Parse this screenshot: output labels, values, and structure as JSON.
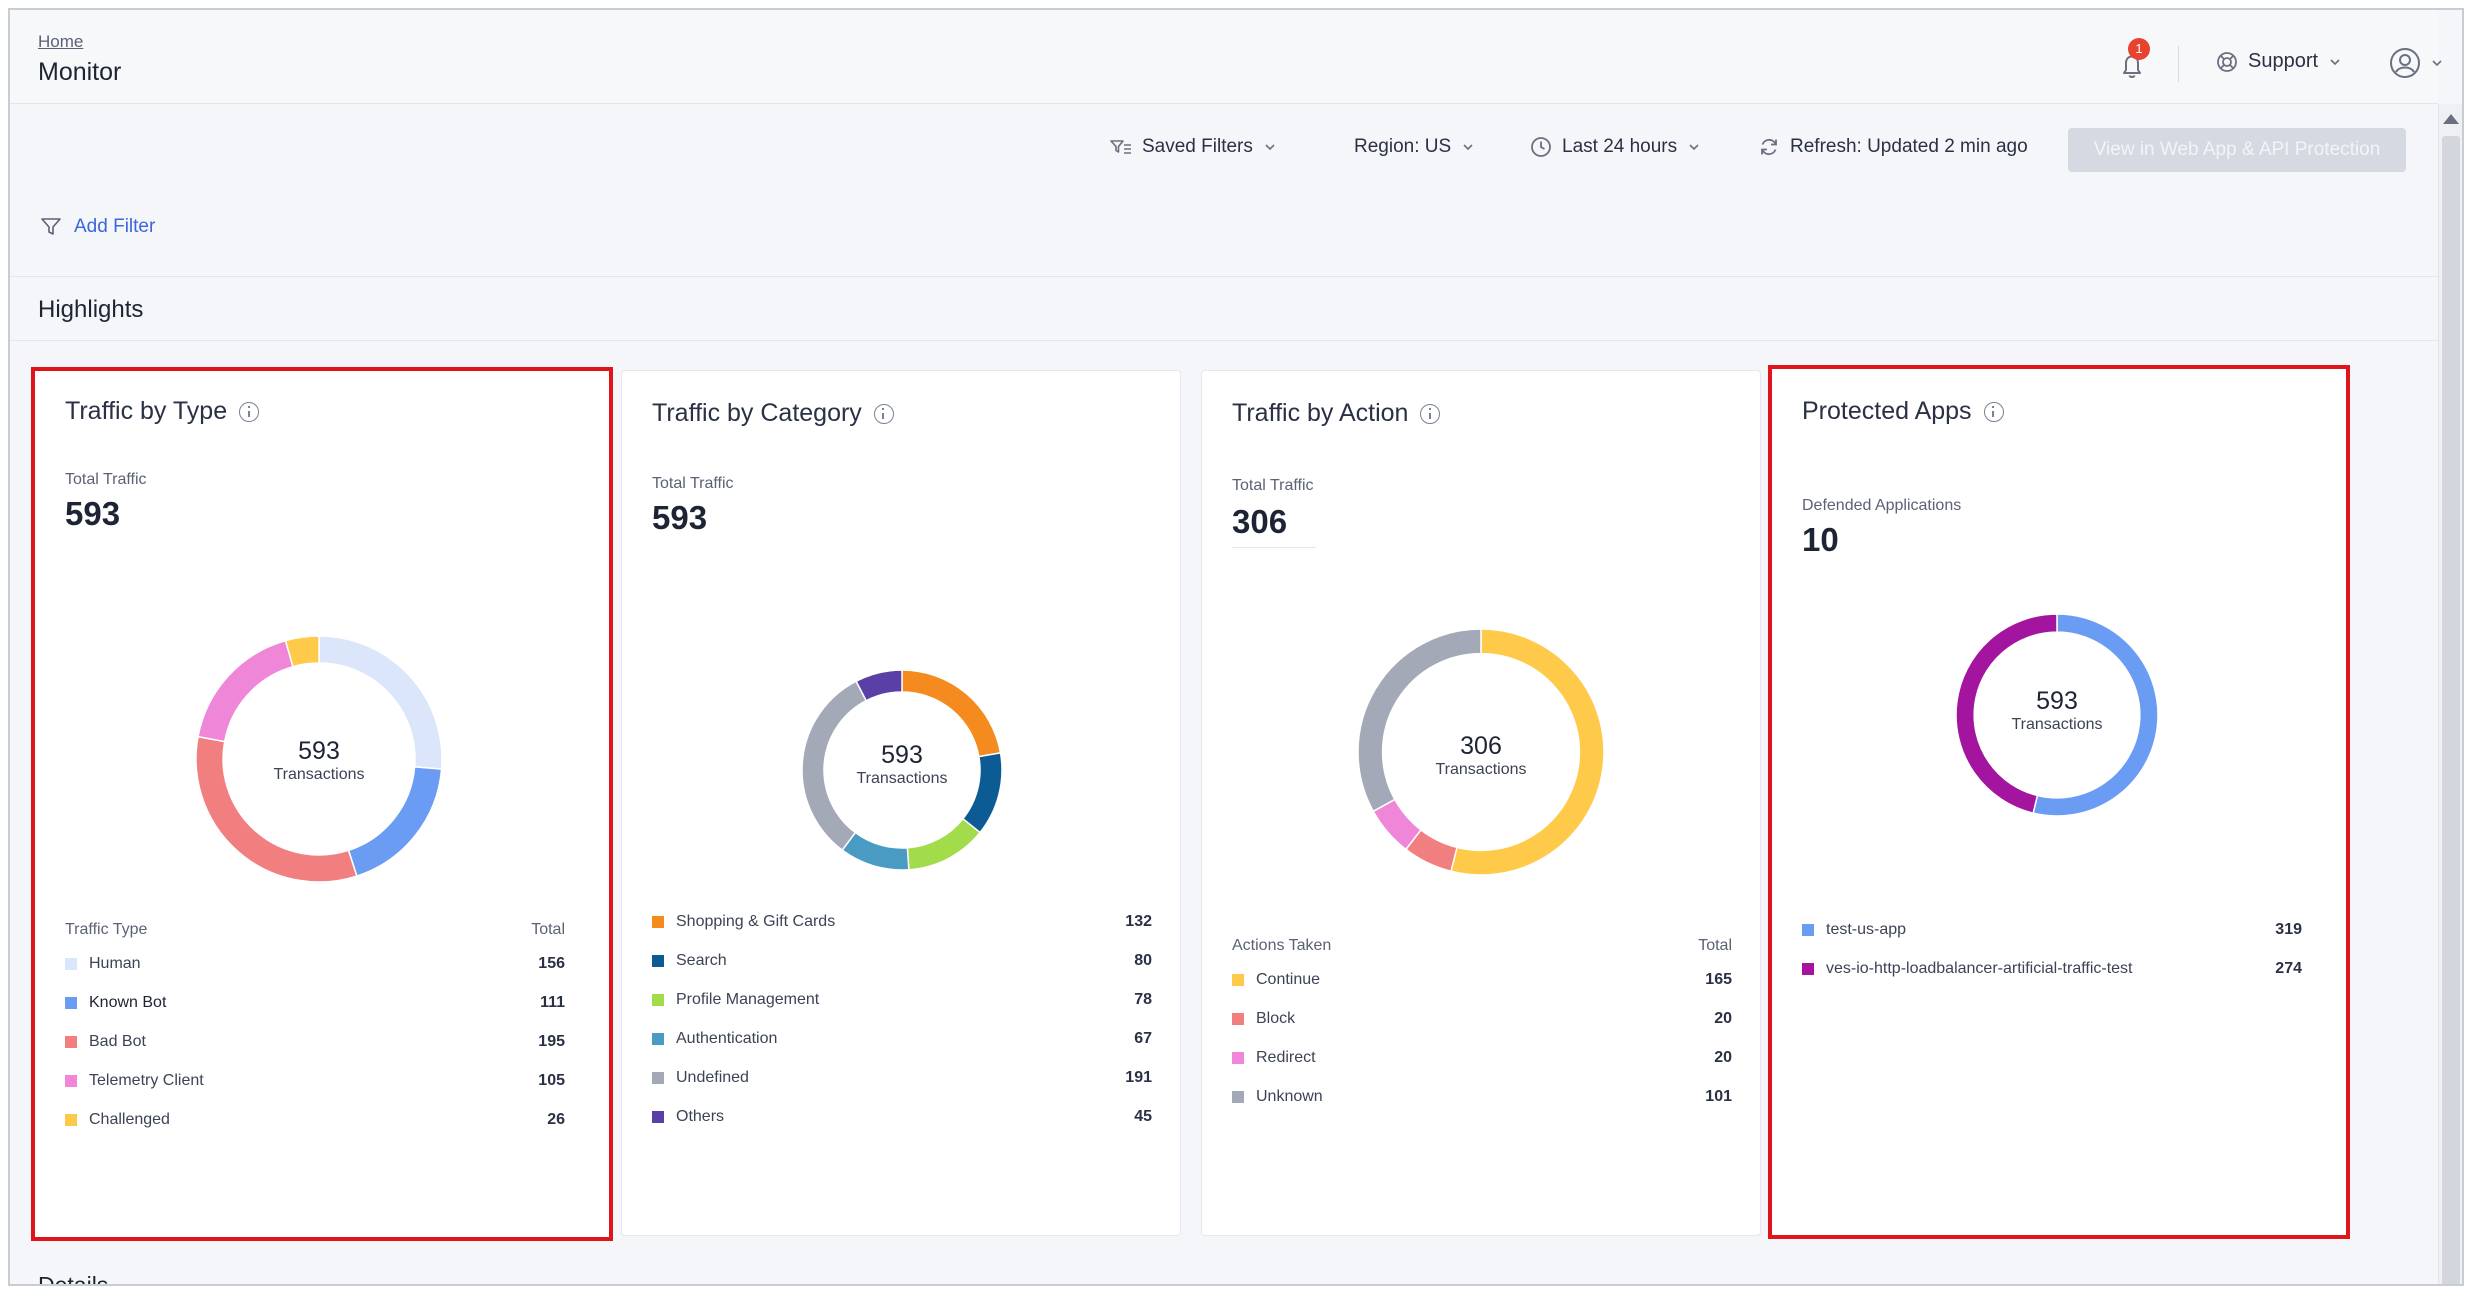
{
  "header": {
    "breadcrumb": "Home",
    "title": "Monitor",
    "notification_count": "1",
    "support_label": "Support"
  },
  "toolbar": {
    "saved_filters": "Saved Filters",
    "region": "Region: US",
    "time_range": "Last 24 hours",
    "refresh": "Refresh: Updated 2 min ago",
    "view_button": "View in Web App & API Protection",
    "add_filter": "Add Filter"
  },
  "sections": {
    "highlights": "Highlights",
    "details": "Details"
  },
  "cards": [
    {
      "title": "Traffic by Type",
      "metric_label": "Total Traffic",
      "metric_value": "593",
      "center_value": "593",
      "center_label": "Transactions",
      "legend_header": "Traffic Type",
      "legend_total": "Total",
      "highlighted": true,
      "items": [
        {
          "label": "Human",
          "value": 156,
          "color": "#dbe6fb"
        },
        {
          "label": "Known Bot",
          "value": 111,
          "color": "#6a9cf4"
        },
        {
          "label": "Bad Bot",
          "value": 195,
          "color": "#f17f7f"
        },
        {
          "label": "Telemetry Client",
          "value": 105,
          "color": "#ef86d8"
        },
        {
          "label": "Challenged",
          "value": 26,
          "color": "#ffc94a"
        }
      ]
    },
    {
      "title": "Traffic by Category",
      "metric_label": "Total Traffic",
      "metric_value": "593",
      "center_value": "593",
      "center_label": "Transactions",
      "highlighted": false,
      "items": [
        {
          "label": "Shopping & Gift Cards",
          "value": 132,
          "color": "#f58a1f"
        },
        {
          "label": "Search",
          "value": 80,
          "color": "#0c5b94"
        },
        {
          "label": "Profile Management",
          "value": 78,
          "color": "#a3dc4a"
        },
        {
          "label": "Authentication",
          "value": 67,
          "color": "#4a9bc4"
        },
        {
          "label": "Undefined",
          "value": 191,
          "color": "#a3a9b6"
        },
        {
          "label": "Others",
          "value": 45,
          "color": "#5a3fa6"
        }
      ]
    },
    {
      "title": "Traffic by Action",
      "metric_label": "Total Traffic",
      "metric_value": "306",
      "center_value": "306",
      "center_label": "Transactions",
      "legend_header": "Actions Taken",
      "legend_total": "Total",
      "highlighted": false,
      "items": [
        {
          "label": "Continue",
          "value": 165,
          "color": "#ffc94a"
        },
        {
          "label": "Block",
          "value": 20,
          "color": "#f17f7f"
        },
        {
          "label": "Redirect",
          "value": 20,
          "color": "#ef86d8"
        },
        {
          "label": "Unknown",
          "value": 101,
          "color": "#a3a9b6"
        }
      ]
    },
    {
      "title": "Protected Apps",
      "metric_label": "Defended Applications",
      "metric_value": "10",
      "center_value": "593",
      "center_label": "Transactions",
      "highlighted": true,
      "items": [
        {
          "label": "test-us-app",
          "value": 319,
          "color": "#6a9cf4"
        },
        {
          "label": "ves-io-http-loadbalancer-artificial-traffic-test",
          "value": 274,
          "color": "#a3159e"
        }
      ]
    }
  ]
}
